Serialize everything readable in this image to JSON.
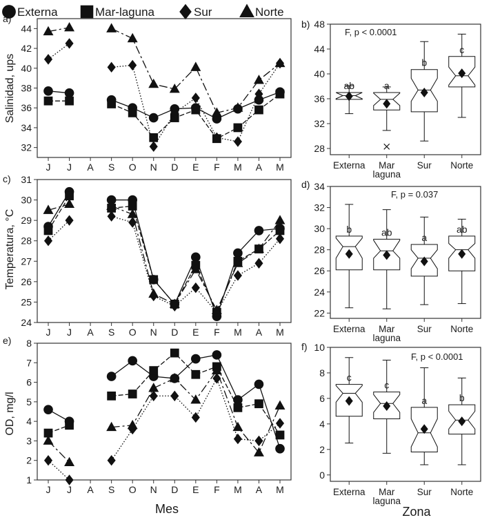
{
  "legend": [
    {
      "name": "Externa",
      "marker": "circle"
    },
    {
      "name": "Mar-laguna",
      "marker": "square"
    },
    {
      "name": "Sur",
      "marker": "diamond"
    },
    {
      "name": "Norte",
      "marker": "triangle"
    }
  ],
  "x_months": [
    "J",
    "J",
    "A",
    "S",
    "O",
    "N",
    "D",
    "E",
    "F",
    "M",
    "A",
    "M"
  ],
  "mes_label": "Mes",
  "zona_label": "Zona",
  "colors": {
    "ink": "#111111",
    "axis": "#333333",
    "dash": "#555555"
  },
  "chart_data": [
    {
      "id": "a",
      "panel_label": "a)",
      "type": "line",
      "ylabel": "Salinidad, ups",
      "ylim": [
        31,
        45
      ],
      "yticks": [
        32,
        34,
        36,
        38,
        40,
        42,
        44
      ],
      "x": [
        "J",
        "J",
        "A",
        "S",
        "O",
        "N",
        "D",
        "E",
        "F",
        "M",
        "A",
        "M"
      ],
      "series": [
        {
          "name": "Externa",
          "values": [
            37.7,
            37.5,
            null,
            36.8,
            36.0,
            35.0,
            35.9,
            36.0,
            34.9,
            35.9,
            36.8,
            37.6
          ]
        },
        {
          "name": "Mar-laguna",
          "values": [
            36.7,
            36.7,
            null,
            36.4,
            35.5,
            33.0,
            35.0,
            35.8,
            32.9,
            34.0,
            35.8,
            37.4
          ]
        },
        {
          "name": "Sur",
          "values": [
            40.9,
            42.5,
            null,
            40.1,
            40.3,
            32.1,
            35.5,
            37.0,
            33.0,
            32.6,
            37.4,
            40.5
          ]
        },
        {
          "name": "Norte",
          "values": [
            43.7,
            44.1,
            null,
            44.0,
            43.0,
            38.4,
            37.9,
            40.1,
            35.5,
            36.0,
            38.8,
            40.5
          ]
        }
      ]
    },
    {
      "id": "b",
      "panel_label": "b)",
      "type": "boxplot",
      "annotation": "F, p < 0.0001",
      "ylim": [
        27,
        48
      ],
      "yticks": [
        28,
        32,
        36,
        40,
        44,
        48
      ],
      "categories": [
        {
          "line1": "Externa",
          "line2": "",
          "letter": "ab",
          "min": 33.6,
          "q1": 35.9,
          "median": 36.5,
          "q3": 37.0,
          "max": 38.1,
          "mean": 36.4,
          "notch": [
            36.0,
            37.0
          ],
          "outlier": null
        },
        {
          "line1": "Mar",
          "line2": "laguna",
          "letter": "a",
          "min": 30.9,
          "q1": 34.2,
          "median": 35.9,
          "q3": 37.0,
          "max": 37.9,
          "mean": 35.2,
          "notch": [
            34.9,
            36.9
          ],
          "outlier": 28.3
        },
        {
          "line1": "Sur",
          "line2": "",
          "letter": "b",
          "min": 29.2,
          "q1": 33.9,
          "median": 37.4,
          "q3": 40.7,
          "max": 45.2,
          "mean": 37.0,
          "notch": [
            35.6,
            39.3
          ],
          "outlier": null
        },
        {
          "line1": "Norte",
          "line2": "",
          "letter": "c",
          "min": 33.0,
          "q1": 37.9,
          "median": 39.7,
          "q3": 42.8,
          "max": 46.4,
          "mean": 40.1,
          "notch": [
            38.2,
            41.1
          ],
          "outlier": null
        }
      ]
    },
    {
      "id": "c",
      "panel_label": "c)",
      "type": "line",
      "ylabel": "Temperatura, °C",
      "ylim": [
        24,
        31
      ],
      "yticks": [
        24,
        25,
        26,
        27,
        28,
        29,
        30,
        31
      ],
      "x": [
        "J",
        "J",
        "A",
        "S",
        "O",
        "N",
        "D",
        "E",
        "F",
        "M",
        "A",
        "M"
      ],
      "series": [
        {
          "name": "Externa",
          "values": [
            28.7,
            30.4,
            null,
            30.0,
            30.0,
            26.1,
            24.9,
            27.2,
            24.3,
            27.4,
            28.5,
            28.6
          ]
        },
        {
          "name": "Mar-laguna",
          "values": [
            28.5,
            30.2,
            null,
            29.6,
            29.7,
            26.1,
            24.9,
            26.8,
            24.5,
            27.0,
            27.6,
            28.5
          ]
        },
        {
          "name": "Sur",
          "values": [
            28.0,
            29.0,
            null,
            29.2,
            28.9,
            25.3,
            24.8,
            25.7,
            24.5,
            26.3,
            26.9,
            28.1
          ]
        },
        {
          "name": "Norte",
          "values": [
            29.5,
            29.8,
            null,
            29.7,
            29.3,
            25.4,
            24.9,
            26.6,
            24.6,
            26.9,
            27.6,
            29.0
          ]
        }
      ]
    },
    {
      "id": "d",
      "panel_label": "d)",
      "type": "boxplot",
      "annotation": "F, p = 0.037",
      "ylim": [
        21.5,
        34
      ],
      "yticks": [
        22,
        24,
        26,
        28,
        30,
        32,
        34
      ],
      "categories": [
        {
          "line1": "Externa",
          "line2": "",
          "letter": "b",
          "min": 22.5,
          "q1": 26.1,
          "median": 28.3,
          "q3": 29.3,
          "max": 32.3,
          "mean": 27.6,
          "notch": [
            27.2,
            29.1
          ],
          "outlier": null
        },
        {
          "line1": "Mar",
          "line2": "laguna",
          "letter": "ab",
          "min": 22.4,
          "q1": 26.1,
          "median": 27.9,
          "q3": 29.0,
          "max": 31.8,
          "mean": 27.5,
          "notch": [
            27.2,
            28.9
          ],
          "outlier": null
        },
        {
          "line1": "Sur",
          "line2": "",
          "letter": "a",
          "min": 22.8,
          "q1": 25.5,
          "median": 27.2,
          "q3": 28.5,
          "max": 31.1,
          "mean": 26.9,
          "notch": [
            26.2,
            28.0
          ],
          "outlier": null
        },
        {
          "line1": "Norte",
          "line2": "",
          "letter": "ab",
          "min": 22.9,
          "q1": 26.0,
          "median": 28.0,
          "q3": 29.3,
          "max": 30.9,
          "mean": 27.6,
          "notch": [
            27.2,
            28.6
          ],
          "outlier": null
        }
      ]
    },
    {
      "id": "e",
      "panel_label": "e)",
      "type": "line",
      "ylabel": "OD, mg/l",
      "ylim": [
        1,
        8
      ],
      "yticks": [
        1,
        2,
        3,
        4,
        5,
        6,
        7,
        8
      ],
      "x": [
        "J",
        "J",
        "A",
        "S",
        "O",
        "N",
        "D",
        "E",
        "F",
        "M",
        "A",
        "M"
      ],
      "series": [
        {
          "name": "Externa",
          "values": [
            4.6,
            4.0,
            null,
            6.3,
            7.1,
            6.3,
            6.2,
            7.2,
            7.4,
            5.1,
            5.9,
            2.6
          ]
        },
        {
          "name": "Mar-laguna",
          "values": [
            3.4,
            3.8,
            null,
            5.3,
            5.4,
            6.6,
            7.5,
            6.4,
            6.8,
            4.7,
            4.9,
            3.3
          ]
        },
        {
          "name": "Sur",
          "values": [
            2.0,
            1.0,
            null,
            2.0,
            3.6,
            5.3,
            5.3,
            4.2,
            6.2,
            3.1,
            3.0,
            3.9
          ]
        },
        {
          "name": "Norte",
          "values": [
            3.0,
            1.9,
            null,
            3.7,
            3.8,
            5.7,
            6.2,
            5.1,
            6.6,
            3.7,
            2.4,
            4.8
          ]
        }
      ]
    },
    {
      "id": "f",
      "panel_label": "f)",
      "type": "boxplot",
      "annotation": "F, p < 0.0001",
      "ylim": [
        -0.5,
        10
      ],
      "yticks": [
        0,
        2,
        4,
        6,
        8,
        10
      ],
      "categories": [
        {
          "line1": "Externa",
          "line2": "",
          "letter": "c",
          "min": 2.5,
          "q1": 4.6,
          "median": 6.4,
          "q3": 7.1,
          "max": 9.2,
          "mean": 5.8,
          "notch": [
            5.7,
            7.0
          ],
          "outlier": null
        },
        {
          "line1": "Mar",
          "line2": "laguna",
          "letter": "c",
          "min": 1.7,
          "q1": 4.4,
          "median": 5.6,
          "q3": 6.5,
          "max": 9.0,
          "mean": 5.4,
          "notch": [
            4.9,
            6.3
          ],
          "outlier": null
        },
        {
          "line1": "Sur",
          "line2": "",
          "letter": "a",
          "min": 0.8,
          "q1": 1.8,
          "median": 3.3,
          "q3": 5.3,
          "max": 8.4,
          "mean": 3.6,
          "notch": [
            2.2,
            4.4
          ],
          "outlier": null
        },
        {
          "line1": "Norte",
          "line2": "",
          "letter": "b",
          "min": 0.8,
          "q1": 3.2,
          "median": 4.3,
          "q3": 5.5,
          "max": 7.6,
          "mean": 4.2,
          "notch": [
            3.6,
            5.0
          ],
          "outlier": null
        }
      ]
    }
  ]
}
